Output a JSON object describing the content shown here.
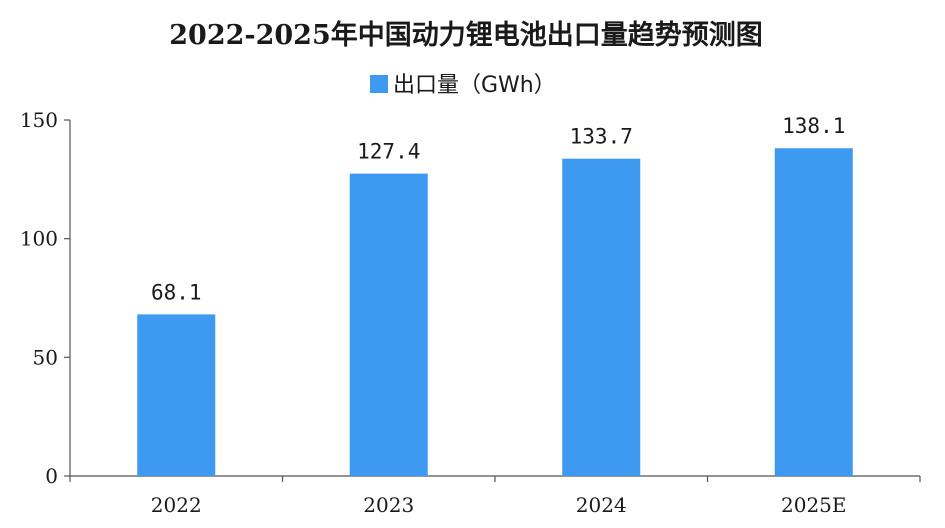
{
  "chart_data": {
    "type": "bar",
    "title": "2022-2025年中国动力锂电池出口量趋势预测图",
    "categories": [
      "2022",
      "2023",
      "2024",
      "2025E"
    ],
    "series": [
      {
        "name": "出口量（GWh）",
        "values": [
          68.1,
          127.4,
          133.7,
          138.1
        ],
        "color": "#3d9af0"
      }
    ],
    "data_labels": [
      "68.1",
      "127.4",
      "133.7",
      "138.1"
    ],
    "ylim": [
      0,
      150
    ],
    "yticks": [
      0,
      50,
      100,
      150
    ],
    "xlabel": "",
    "ylabel": "",
    "legend_position": "top-center",
    "grid": false
  }
}
